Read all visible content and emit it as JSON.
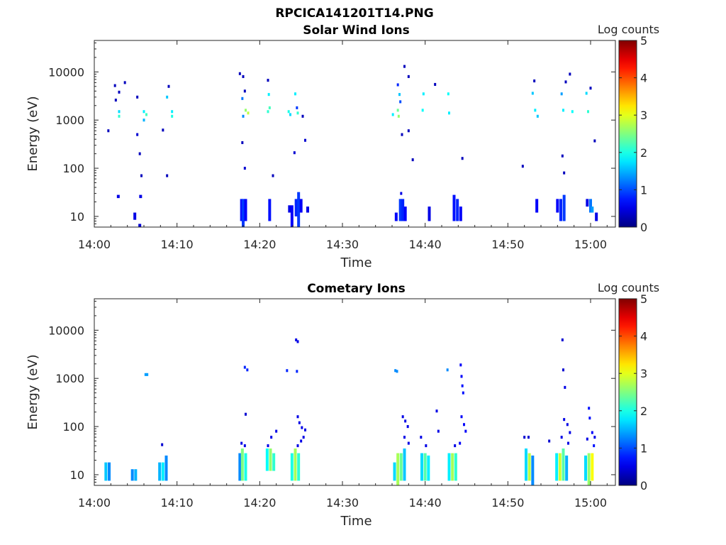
{
  "figure_title": "RPCICA141201T14.PNG",
  "chart_data": [
    {
      "type": "heatmap",
      "title": "Solar Wind Ions",
      "xlabel": "Time",
      "ylabel": "Energy (eV)",
      "x_ticks": [
        "14:00",
        "14:10",
        "14:20",
        "14:30",
        "14:40",
        "14:50",
        "15:00"
      ],
      "x_range_minutes": [
        0,
        63
      ],
      "y_scale": "log",
      "y_ticks": [
        "10",
        "100",
        "1000",
        "10000"
      ],
      "y_range": [
        6,
        45000
      ],
      "colorbar": {
        "label": "Log counts",
        "ticks": [
          "0",
          "1",
          "2",
          "3",
          "4",
          "5"
        ],
        "range": [
          0,
          5
        ]
      },
      "cells": [
        {
          "t": 2.5,
          "e": 5200,
          "v": 0.3
        },
        {
          "t": 3.7,
          "e": 6000,
          "v": 0.3
        },
        {
          "t": 3.0,
          "e": 3800,
          "v": 0.3
        },
        {
          "t": 2.6,
          "e": 2600,
          "v": 0.3
        },
        {
          "t": 3.0,
          "e": 1500,
          "v": 1.7
        },
        {
          "t": 3.0,
          "e": 1200,
          "v": 2.1
        },
        {
          "t": 1.7,
          "e": 600,
          "v": 0.3
        },
        {
          "t": 6.0,
          "e": 1500,
          "v": 1.8
        },
        {
          "t": 6.3,
          "e": 1300,
          "v": 2.2
        },
        {
          "t": 6.0,
          "e": 1000,
          "v": 1.5
        },
        {
          "t": 5.2,
          "e": 3000,
          "v": 0.3
        },
        {
          "t": 5.2,
          "e": 500,
          "v": 0.4
        },
        {
          "t": 5.5,
          "e": 200,
          "v": 0.3
        },
        {
          "t": 5.7,
          "e": 70,
          "v": 0.3
        },
        {
          "t": 9.0,
          "e": 5000,
          "v": 0.3
        },
        {
          "t": 8.8,
          "e": 3000,
          "v": 1.6
        },
        {
          "t": 9.4,
          "e": 1500,
          "v": 1.8
        },
        {
          "t": 9.4,
          "e": 1200,
          "v": 2.0
        },
        {
          "t": 8.3,
          "e": 620,
          "v": 0.3
        },
        {
          "t": 8.8,
          "e": 70,
          "v": 0.3
        },
        {
          "t": 17.6,
          "e": 9200,
          "v": 0.3
        },
        {
          "t": 18.0,
          "e": 8000,
          "v": 0.3
        },
        {
          "t": 18.2,
          "e": 4000,
          "v": 0.3
        },
        {
          "t": 17.9,
          "e": 2800,
          "v": 1.2
        },
        {
          "t": 18.3,
          "e": 1600,
          "v": 2.6
        },
        {
          "t": 18.6,
          "e": 1400,
          "v": 2.8
        },
        {
          "t": 18.0,
          "e": 1200,
          "v": 1.3
        },
        {
          "t": 17.9,
          "e": 340,
          "v": 0.3
        },
        {
          "t": 18.2,
          "e": 100,
          "v": 0.4
        },
        {
          "t": 21.0,
          "e": 6700,
          "v": 0.3
        },
        {
          "t": 21.1,
          "e": 3400,
          "v": 1.8
        },
        {
          "t": 21.2,
          "e": 1800,
          "v": 2.2
        },
        {
          "t": 21.0,
          "e": 1500,
          "v": 2.1
        },
        {
          "t": 23.5,
          "e": 1500,
          "v": 2.0
        },
        {
          "t": 23.7,
          "e": 1300,
          "v": 1.7
        },
        {
          "t": 24.3,
          "e": 3500,
          "v": 1.8
        },
        {
          "t": 24.5,
          "e": 1800,
          "v": 0.9
        },
        {
          "t": 24.6,
          "e": 1400,
          "v": 2.1
        },
        {
          "t": 25.2,
          "e": 1200,
          "v": 0.3
        },
        {
          "t": 25.5,
          "e": 380,
          "v": 0.4
        },
        {
          "t": 24.2,
          "e": 210,
          "v": 0.4
        },
        {
          "t": 21.6,
          "e": 70,
          "v": 0.3
        },
        {
          "t": 36.1,
          "e": 1300,
          "v": 1.8
        },
        {
          "t": 36.7,
          "e": 1600,
          "v": 2.4
        },
        {
          "t": 36.8,
          "e": 1200,
          "v": 2.6
        },
        {
          "t": 36.9,
          "e": 3400,
          "v": 1.6
        },
        {
          "t": 36.7,
          "e": 5400,
          "v": 0.8
        },
        {
          "t": 37.0,
          "e": 2400,
          "v": 1.0
        },
        {
          "t": 37.5,
          "e": 13000,
          "v": 0.3
        },
        {
          "t": 38.0,
          "e": 8000,
          "v": 0.3
        },
        {
          "t": 37.2,
          "e": 500,
          "v": 0.3
        },
        {
          "t": 38.0,
          "e": 600,
          "v": 0.3
        },
        {
          "t": 39.8,
          "e": 3500,
          "v": 1.8
        },
        {
          "t": 39.7,
          "e": 1600,
          "v": 1.9
        },
        {
          "t": 41.2,
          "e": 5500,
          "v": 0.3
        },
        {
          "t": 42.8,
          "e": 3500,
          "v": 1.9
        },
        {
          "t": 42.9,
          "e": 1400,
          "v": 1.8
        },
        {
          "t": 44.5,
          "e": 160,
          "v": 0.3
        },
        {
          "t": 38.5,
          "e": 150,
          "v": 0.3
        },
        {
          "t": 37.1,
          "e": 30,
          "v": 0.5
        },
        {
          "t": 53.0,
          "e": 3600,
          "v": 1.6
        },
        {
          "t": 53.3,
          "e": 1600,
          "v": 1.8
        },
        {
          "t": 53.6,
          "e": 1200,
          "v": 1.6
        },
        {
          "t": 53.2,
          "e": 6500,
          "v": 0.3
        },
        {
          "t": 56.5,
          "e": 3500,
          "v": 1.4
        },
        {
          "t": 56.7,
          "e": 1600,
          "v": 1.8
        },
        {
          "t": 57.0,
          "e": 6200,
          "v": 0.3
        },
        {
          "t": 59.5,
          "e": 3600,
          "v": 1.7
        },
        {
          "t": 59.7,
          "e": 1500,
          "v": 2.1
        },
        {
          "t": 57.8,
          "e": 1500,
          "v": 1.9
        },
        {
          "t": 57.5,
          "e": 9000,
          "v": 0.3
        },
        {
          "t": 60.0,
          "e": 4600,
          "v": 0.3
        },
        {
          "t": 51.8,
          "e": 110,
          "v": 0.3
        },
        {
          "t": 56.6,
          "e": 180,
          "v": 0.3
        },
        {
          "t": 56.8,
          "e": 80,
          "v": 0.3
        },
        {
          "t": 60.5,
          "e": 370,
          "v": 0.3
        }
      ],
      "columns": [
        {
          "t": 2.9,
          "e_min": 24,
          "e_max": 28,
          "v": 0.5
        },
        {
          "t": 5.6,
          "e_min": 24,
          "e_max": 28,
          "v": 0.5
        },
        {
          "t": 4.9,
          "e_min": 8.5,
          "e_max": 12,
          "v": 0.5
        },
        {
          "t": 5.5,
          "e_min": 6,
          "e_max": 7,
          "v": 0.4
        },
        {
          "t": 17.8,
          "e_min": 8,
          "e_max": 23,
          "v": 0.7
        },
        {
          "t": 18.0,
          "e_min": 6,
          "e_max": 23,
          "v": 0.9
        },
        {
          "t": 18.3,
          "e_min": 8,
          "e_max": 23,
          "v": 0.6
        },
        {
          "t": 21.2,
          "e_min": 8,
          "e_max": 23,
          "v": 0.7
        },
        {
          "t": 23.6,
          "e_min": 12,
          "e_max": 17,
          "v": 0.5
        },
        {
          "t": 23.9,
          "e_min": 6,
          "e_max": 17,
          "v": 0.6
        },
        {
          "t": 24.4,
          "e_min": 10,
          "e_max": 23,
          "v": 0.8
        },
        {
          "t": 24.7,
          "e_min": 6,
          "e_max": 32,
          "v": 0.9
        },
        {
          "t": 25.0,
          "e_min": 12,
          "e_max": 23,
          "v": 0.6
        },
        {
          "t": 25.8,
          "e_min": 12,
          "e_max": 16,
          "v": 0.5
        },
        {
          "t": 36.5,
          "e_min": 8,
          "e_max": 12,
          "v": 0.6
        },
        {
          "t": 37.0,
          "e_min": 8,
          "e_max": 23,
          "v": 0.9
        },
        {
          "t": 37.3,
          "e_min": 8,
          "e_max": 23,
          "v": 0.8
        },
        {
          "t": 37.6,
          "e_min": 8,
          "e_max": 16,
          "v": 0.6
        },
        {
          "t": 40.5,
          "e_min": 8,
          "e_max": 16,
          "v": 0.5
        },
        {
          "t": 43.5,
          "e_min": 8,
          "e_max": 28,
          "v": 0.7
        },
        {
          "t": 43.9,
          "e_min": 8,
          "e_max": 23,
          "v": 0.8
        },
        {
          "t": 44.3,
          "e_min": 8,
          "e_max": 16,
          "v": 0.6
        },
        {
          "t": 53.5,
          "e_min": 12,
          "e_max": 23,
          "v": 0.6
        },
        {
          "t": 56.0,
          "e_min": 12,
          "e_max": 23,
          "v": 0.6
        },
        {
          "t": 56.4,
          "e_min": 8,
          "e_max": 23,
          "v": 0.8
        },
        {
          "t": 56.8,
          "e_min": 8,
          "e_max": 28,
          "v": 0.9
        },
        {
          "t": 59.6,
          "e_min": 16,
          "e_max": 23,
          "v": 0.5
        },
        {
          "t": 60.0,
          "e_min": 12,
          "e_max": 23,
          "v": 1.2
        },
        {
          "t": 60.2,
          "e_min": 12,
          "e_max": 16,
          "v": 1.4
        },
        {
          "t": 60.7,
          "e_min": 8,
          "e_max": 12,
          "v": 0.5
        }
      ]
    },
    {
      "type": "heatmap",
      "title": "Cometary Ions",
      "xlabel": "Time",
      "ylabel": "Energy (eV)",
      "x_ticks": [
        "14:00",
        "14:10",
        "14:20",
        "14:30",
        "14:40",
        "14:50",
        "15:00"
      ],
      "x_range_minutes": [
        0,
        63
      ],
      "y_scale": "log",
      "y_ticks": [
        "10",
        "100",
        "1000",
        "10000"
      ],
      "y_range": [
        6,
        45000
      ],
      "colorbar": {
        "label": "Log counts",
        "ticks": [
          "0",
          "1",
          "2",
          "3",
          "4",
          "5"
        ],
        "range": [
          0,
          5
        ]
      },
      "cells": [
        {
          "t": 6.2,
          "e": 1200,
          "v": 1.4
        },
        {
          "t": 6.4,
          "e": 1200,
          "v": 1.4
        },
        {
          "t": 8.2,
          "e": 42,
          "v": 0.4
        },
        {
          "t": 18.2,
          "e": 1700,
          "v": 0.8
        },
        {
          "t": 18.5,
          "e": 1500,
          "v": 0.8
        },
        {
          "t": 18.3,
          "e": 180,
          "v": 0.4
        },
        {
          "t": 17.8,
          "e": 45,
          "v": 0.5
        },
        {
          "t": 18.2,
          "e": 40,
          "v": 0.5
        },
        {
          "t": 23.3,
          "e": 1450,
          "v": 0.8
        },
        {
          "t": 24.4,
          "e": 6300,
          "v": 0.5
        },
        {
          "t": 24.6,
          "e": 5800,
          "v": 0.5
        },
        {
          "t": 24.5,
          "e": 1400,
          "v": 0.8
        },
        {
          "t": 24.6,
          "e": 160,
          "v": 0.5
        },
        {
          "t": 24.8,
          "e": 120,
          "v": 0.5
        },
        {
          "t": 25.1,
          "e": 95,
          "v": 0.5
        },
        {
          "t": 25.5,
          "e": 85,
          "v": 0.5
        },
        {
          "t": 25.3,
          "e": 60,
          "v": 0.5
        },
        {
          "t": 25.0,
          "e": 50,
          "v": 0.5
        },
        {
          "t": 24.6,
          "e": 40,
          "v": 0.5
        },
        {
          "t": 21.4,
          "e": 60,
          "v": 0.5
        },
        {
          "t": 22.0,
          "e": 80,
          "v": 0.5
        },
        {
          "t": 21.0,
          "e": 40,
          "v": 0.5
        },
        {
          "t": 36.4,
          "e": 1450,
          "v": 1.3
        },
        {
          "t": 36.6,
          "e": 1400,
          "v": 1.3
        },
        {
          "t": 37.3,
          "e": 160,
          "v": 0.5
        },
        {
          "t": 37.6,
          "e": 130,
          "v": 0.5
        },
        {
          "t": 37.9,
          "e": 100,
          "v": 0.5
        },
        {
          "t": 37.5,
          "e": 60,
          "v": 0.5
        },
        {
          "t": 38.0,
          "e": 45,
          "v": 0.5
        },
        {
          "t": 39.5,
          "e": 60,
          "v": 0.5
        },
        {
          "t": 40.1,
          "e": 40,
          "v": 0.5
        },
        {
          "t": 41.4,
          "e": 210,
          "v": 0.5
        },
        {
          "t": 41.6,
          "e": 80,
          "v": 0.5
        },
        {
          "t": 42.7,
          "e": 1500,
          "v": 1.3
        },
        {
          "t": 44.3,
          "e": 1900,
          "v": 0.6
        },
        {
          "t": 44.4,
          "e": 1100,
          "v": 0.6
        },
        {
          "t": 44.5,
          "e": 700,
          "v": 0.7
        },
        {
          "t": 44.6,
          "e": 500,
          "v": 0.7
        },
        {
          "t": 44.4,
          "e": 160,
          "v": 0.6
        },
        {
          "t": 44.7,
          "e": 110,
          "v": 0.6
        },
        {
          "t": 44.9,
          "e": 80,
          "v": 0.6
        },
        {
          "t": 44.2,
          "e": 45,
          "v": 0.6
        },
        {
          "t": 43.6,
          "e": 40,
          "v": 0.5
        },
        {
          "t": 52.0,
          "e": 60,
          "v": 0.4
        },
        {
          "t": 52.5,
          "e": 60,
          "v": 0.4
        },
        {
          "t": 55.0,
          "e": 50,
          "v": 0.4
        },
        {
          "t": 56.6,
          "e": 6300,
          "v": 0.4
        },
        {
          "t": 56.7,
          "e": 1500,
          "v": 0.4
        },
        {
          "t": 56.9,
          "e": 650,
          "v": 0.5
        },
        {
          "t": 56.8,
          "e": 140,
          "v": 0.5
        },
        {
          "t": 57.2,
          "e": 110,
          "v": 0.5
        },
        {
          "t": 57.5,
          "e": 75,
          "v": 0.5
        },
        {
          "t": 56.5,
          "e": 60,
          "v": 0.5
        },
        {
          "t": 57.3,
          "e": 45,
          "v": 0.5
        },
        {
          "t": 59.8,
          "e": 240,
          "v": 0.7
        },
        {
          "t": 59.9,
          "e": 150,
          "v": 0.7
        },
        {
          "t": 60.2,
          "e": 75,
          "v": 0.6
        },
        {
          "t": 60.5,
          "e": 60,
          "v": 0.5
        },
        {
          "t": 59.6,
          "e": 55,
          "v": 0.5
        },
        {
          "t": 60.4,
          "e": 40,
          "v": 0.7
        }
      ],
      "columns": [
        {
          "t": 1.4,
          "e_min": 7.5,
          "e_max": 18,
          "v": 1.6
        },
        {
          "t": 1.8,
          "e_min": 7.5,
          "e_max": 18,
          "v": 1.3
        },
        {
          "t": 4.6,
          "e_min": 7.5,
          "e_max": 13,
          "v": 1.3
        },
        {
          "t": 5.0,
          "e_min": 7.5,
          "e_max": 13,
          "v": 1.5
        },
        {
          "t": 7.9,
          "e_min": 7.5,
          "e_max": 18,
          "v": 1.5
        },
        {
          "t": 8.3,
          "e_min": 7.5,
          "e_max": 18,
          "v": 1.8
        },
        {
          "t": 8.7,
          "e_min": 7.5,
          "e_max": 25,
          "v": 1.3
        },
        {
          "t": 17.6,
          "e_min": 7.5,
          "e_max": 28,
          "v": 1.3
        },
        {
          "t": 17.9,
          "e_min": 7.5,
          "e_max": 35,
          "v": 2.5
        },
        {
          "t": 18.3,
          "e_min": 7.5,
          "e_max": 28,
          "v": 2.0
        },
        {
          "t": 20.9,
          "e_min": 12,
          "e_max": 35,
          "v": 1.9
        },
        {
          "t": 21.3,
          "e_min": 12,
          "e_max": 35,
          "v": 2.6
        },
        {
          "t": 21.7,
          "e_min": 12,
          "e_max": 28,
          "v": 2.1
        },
        {
          "t": 23.9,
          "e_min": 7.5,
          "e_max": 28,
          "v": 2.0
        },
        {
          "t": 24.3,
          "e_min": 7.5,
          "e_max": 35,
          "v": 2.7
        },
        {
          "t": 24.7,
          "e_min": 7.5,
          "e_max": 28,
          "v": 2.1
        },
        {
          "t": 36.3,
          "e_min": 7.5,
          "e_max": 18,
          "v": 1.7
        },
        {
          "t": 36.7,
          "e_min": 6,
          "e_max": 28,
          "v": 2.7
        },
        {
          "t": 37.1,
          "e_min": 7.5,
          "e_max": 28,
          "v": 2.4
        },
        {
          "t": 37.5,
          "e_min": 7.5,
          "e_max": 35,
          "v": 1.6
        },
        {
          "t": 39.6,
          "e_min": 7.5,
          "e_max": 28,
          "v": 1.7
        },
        {
          "t": 40.0,
          "e_min": 7.5,
          "e_max": 28,
          "v": 2.3
        },
        {
          "t": 40.4,
          "e_min": 7.5,
          "e_max": 25,
          "v": 1.8
        },
        {
          "t": 42.9,
          "e_min": 7.5,
          "e_max": 28,
          "v": 1.8
        },
        {
          "t": 43.3,
          "e_min": 7.5,
          "e_max": 28,
          "v": 2.7
        },
        {
          "t": 43.7,
          "e_min": 7.5,
          "e_max": 28,
          "v": 2.1
        },
        {
          "t": 52.2,
          "e_min": 7.5,
          "e_max": 35,
          "v": 1.7
        },
        {
          "t": 52.6,
          "e_min": 7.5,
          "e_max": 28,
          "v": 2.8
        },
        {
          "t": 53.0,
          "e_min": 6,
          "e_max": 25,
          "v": 1.3
        },
        {
          "t": 55.9,
          "e_min": 7.5,
          "e_max": 28,
          "v": 1.8
        },
        {
          "t": 56.3,
          "e_min": 7.5,
          "e_max": 28,
          "v": 2.9
        },
        {
          "t": 56.7,
          "e_min": 7.5,
          "e_max": 35,
          "v": 2.3
        },
        {
          "t": 57.1,
          "e_min": 7.5,
          "e_max": 25,
          "v": 1.5
        },
        {
          "t": 59.4,
          "e_min": 7.5,
          "e_max": 25,
          "v": 1.7
        },
        {
          "t": 59.8,
          "e_min": 6,
          "e_max": 28,
          "v": 2.6
        },
        {
          "t": 60.2,
          "e_min": 7.5,
          "e_max": 28,
          "v": 3.1
        }
      ]
    }
  ]
}
